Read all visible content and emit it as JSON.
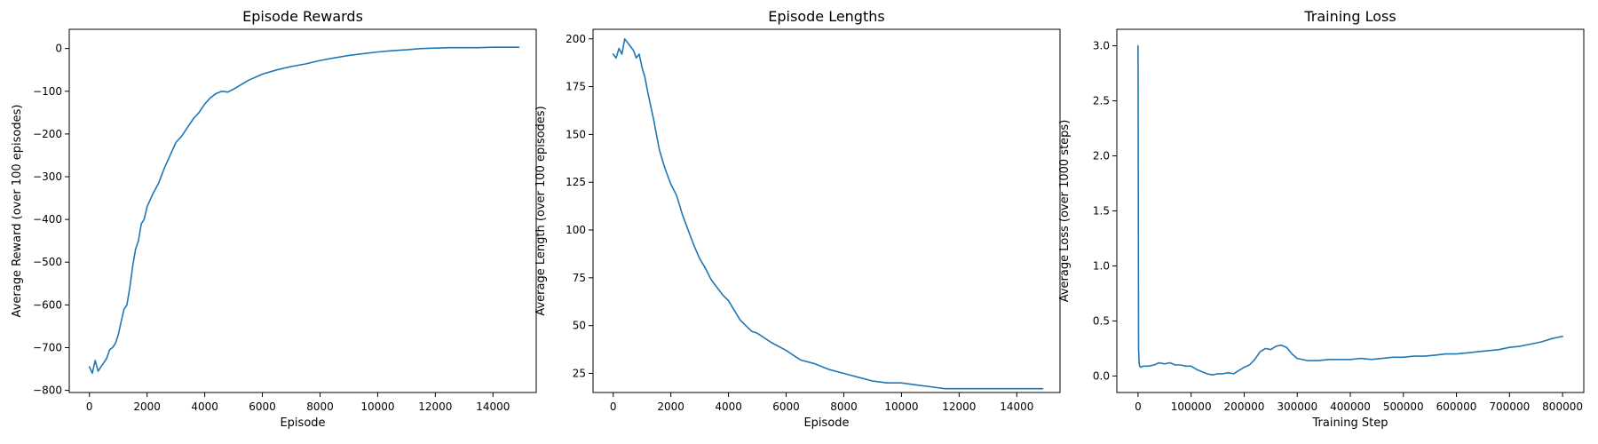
{
  "colors": {
    "series": "#1f77b4",
    "axes": "#000000",
    "background": "#ffffff"
  },
  "chart_data": [
    {
      "type": "line",
      "title": "Episode Rewards",
      "xlabel": "Episode",
      "ylabel": "Average Reward (over 100 episodes)",
      "xlim": [
        -700,
        15500
      ],
      "ylim": [
        -805,
        45
      ],
      "xticks": [
        0,
        2000,
        4000,
        6000,
        8000,
        10000,
        12000,
        14000
      ],
      "xtick_labels": [
        "0",
        "2000",
        "4000",
        "6000",
        "8000",
        "10000",
        "12000",
        "14000"
      ],
      "yticks": [
        -800,
        -700,
        -600,
        -500,
        -400,
        -300,
        -200,
        -100,
        0
      ],
      "ytick_labels": [
        "−800",
        "−700",
        "−600",
        "−500",
        "−400",
        "−300",
        "−200",
        "−100",
        "0"
      ],
      "grid": false,
      "series": [
        {
          "x": [
            0,
            100,
            200,
            300,
            400,
            500,
            600,
            700,
            800,
            900,
            1000,
            1100,
            1200,
            1300,
            1400,
            1500,
            1600,
            1700,
            1800,
            1900,
            2000,
            2200,
            2400,
            2600,
            2800,
            3000,
            3200,
            3400,
            3600,
            3800,
            4000,
            4200,
            4400,
            4600,
            4800,
            5000,
            5500,
            6000,
            6500,
            7000,
            7500,
            8000,
            8500,
            9000,
            9500,
            10000,
            10500,
            11000,
            11500,
            12000,
            12500,
            13000,
            13500,
            14000,
            14500,
            14900
          ],
          "y": [
            -745,
            -760,
            -730,
            -755,
            -745,
            -735,
            -725,
            -705,
            -700,
            -690,
            -670,
            -640,
            -610,
            -600,
            -560,
            -510,
            -470,
            -450,
            -410,
            -400,
            -370,
            -340,
            -315,
            -280,
            -250,
            -220,
            -205,
            -185,
            -165,
            -150,
            -130,
            -115,
            -105,
            -100,
            -102,
            -95,
            -75,
            -60,
            -50,
            -42,
            -36,
            -28,
            -22,
            -16,
            -12,
            -8,
            -5,
            -3,
            0,
            1,
            2,
            2,
            2,
            3,
            3,
            3
          ]
        }
      ]
    },
    {
      "type": "line",
      "title": "Episode Lengths",
      "xlabel": "Episode",
      "ylabel": "Average Length (over 100 episodes)",
      "xlim": [
        -700,
        15500
      ],
      "ylim": [
        15,
        205
      ],
      "xticks": [
        0,
        2000,
        4000,
        6000,
        8000,
        10000,
        12000,
        14000
      ],
      "xtick_labels": [
        "0",
        "2000",
        "4000",
        "6000",
        "8000",
        "10000",
        "12000",
        "14000"
      ],
      "yticks": [
        25,
        50,
        75,
        100,
        125,
        150,
        175,
        200
      ],
      "ytick_labels": [
        "25",
        "50",
        "75",
        "100",
        "125",
        "150",
        "175",
        "200"
      ],
      "grid": false,
      "series": [
        {
          "x": [
            0,
            100,
            200,
            300,
            400,
            500,
            600,
            700,
            800,
            900,
            1000,
            1100,
            1200,
            1300,
            1400,
            1500,
            1600,
            1700,
            1800,
            1900,
            2000,
            2200,
            2400,
            2600,
            2800,
            3000,
            3200,
            3400,
            3600,
            3800,
            4000,
            4200,
            4400,
            4600,
            4800,
            5000,
            5500,
            6000,
            6500,
            7000,
            7500,
            8000,
            8500,
            9000,
            9500,
            10000,
            10500,
            11000,
            11500,
            12000,
            12500,
            13000,
            13500,
            14000,
            14500,
            14900
          ],
          "y": [
            192,
            190,
            195,
            192,
            200,
            198,
            196,
            194,
            190,
            192,
            185,
            180,
            172,
            165,
            158,
            150,
            142,
            137,
            132,
            128,
            124,
            118,
            108,
            100,
            92,
            85,
            80,
            74,
            70,
            66,
            63,
            58,
            53,
            50,
            47,
            46,
            41,
            37,
            32,
            30,
            27,
            25,
            23,
            21,
            20,
            20,
            19,
            18,
            17,
            17,
            17,
            17,
            17,
            17,
            17,
            17
          ]
        }
      ]
    },
    {
      "type": "line",
      "title": "Training Loss",
      "xlabel": "Training Step",
      "ylabel": "Average Loss (over 1000 steps)",
      "xlim": [
        -40000,
        840000
      ],
      "ylim": [
        -0.15,
        3.15
      ],
      "xticks": [
        0,
        100000,
        200000,
        300000,
        400000,
        500000,
        600000,
        700000,
        800000
      ],
      "xtick_labels": [
        "0",
        "100000",
        "200000",
        "300000",
        "400000",
        "500000",
        "600000",
        "700000",
        "800000"
      ],
      "yticks": [
        0.0,
        0.5,
        1.0,
        1.5,
        2.0,
        2.5,
        3.0
      ],
      "ytick_labels": [
        "0.0",
        "0.5",
        "1.0",
        "1.5",
        "2.0",
        "2.5",
        "3.0"
      ],
      "grid": false,
      "series": [
        {
          "x": [
            0,
            1000,
            2000,
            3000,
            5000,
            10000,
            20000,
            30000,
            40000,
            50000,
            60000,
            70000,
            80000,
            90000,
            100000,
            110000,
            120000,
            130000,
            140000,
            150000,
            160000,
            170000,
            180000,
            190000,
            200000,
            210000,
            220000,
            230000,
            240000,
            250000,
            260000,
            270000,
            280000,
            290000,
            300000,
            320000,
            340000,
            360000,
            380000,
            400000,
            420000,
            440000,
            460000,
            480000,
            500000,
            520000,
            540000,
            560000,
            580000,
            600000,
            620000,
            640000,
            660000,
            680000,
            700000,
            720000,
            740000,
            760000,
            780000,
            790000,
            800000
          ],
          "y": [
            3.0,
            0.25,
            0.12,
            0.09,
            0.08,
            0.09,
            0.09,
            0.1,
            0.12,
            0.11,
            0.12,
            0.1,
            0.1,
            0.09,
            0.09,
            0.06,
            0.04,
            0.02,
            0.01,
            0.02,
            0.02,
            0.03,
            0.02,
            0.05,
            0.08,
            0.1,
            0.15,
            0.22,
            0.25,
            0.24,
            0.27,
            0.28,
            0.26,
            0.2,
            0.16,
            0.14,
            0.14,
            0.15,
            0.15,
            0.15,
            0.16,
            0.15,
            0.16,
            0.17,
            0.17,
            0.18,
            0.18,
            0.19,
            0.2,
            0.2,
            0.21,
            0.22,
            0.23,
            0.24,
            0.26,
            0.27,
            0.29,
            0.31,
            0.34,
            0.35,
            0.36
          ]
        }
      ]
    }
  ]
}
